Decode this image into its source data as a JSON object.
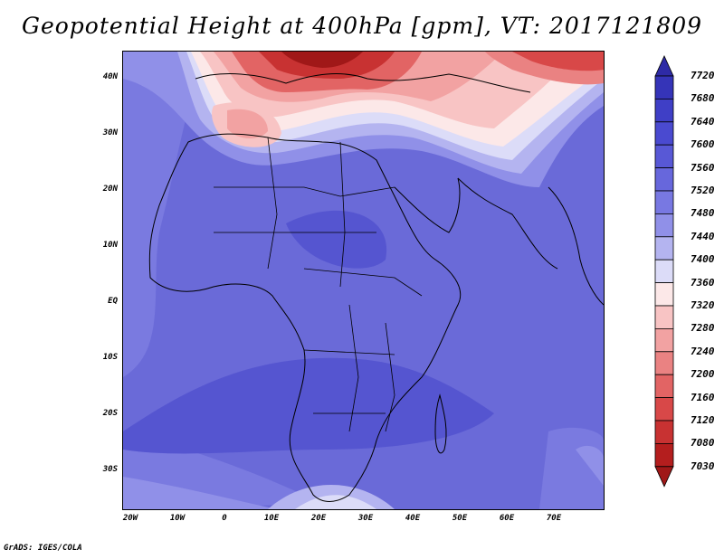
{
  "title": "Geopotential Height at 400hPa [gpm], VT: 2017121809",
  "lat_ticks": [
    "40N",
    "30N",
    "20N",
    "10N",
    "EQ",
    "10S",
    "20S",
    "30S"
  ],
  "lon_ticks": [
    "20W",
    "10W",
    "0",
    "10E",
    "20E",
    "30E",
    "40E",
    "50E",
    "60E",
    "70E"
  ],
  "colorbar": {
    "levels": [
      "7720",
      "7680",
      "7640",
      "7600",
      "7560",
      "7520",
      "7480",
      "7440",
      "7400",
      "7360",
      "7320",
      "7280",
      "7240",
      "7200",
      "7160",
      "7120",
      "7080",
      "7030"
    ],
    "colors": [
      "#2e2aa6",
      "#3534b8",
      "#3f3fc6",
      "#4a4ad0",
      "#5858d6",
      "#6767dc",
      "#7878e2",
      "#9090e8",
      "#b4b4f0",
      "#dcdcf8",
      "#fce8e8",
      "#f8c4c4",
      "#f2a2a2",
      "#ea8282",
      "#e26464",
      "#d84848",
      "#c83232",
      "#b41e1e",
      "#a01818"
    ]
  },
  "credit": "GrADS: IGES/COLA"
}
